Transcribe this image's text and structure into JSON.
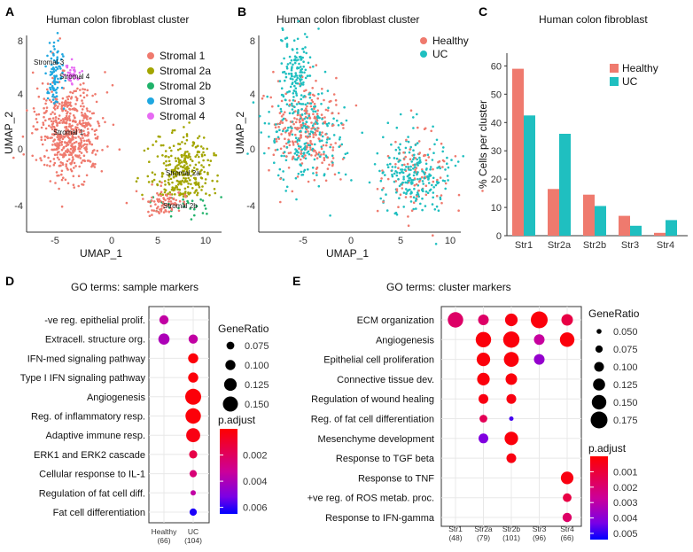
{
  "colors": {
    "salmon": "#ef7a6e",
    "teal": "#1fbfc0",
    "olive": "#a3a500",
    "green": "#20b26a",
    "blue": "#1fa7e0",
    "magenta": "#e76bf3"
  },
  "chart_data": [
    {
      "panel": "A",
      "type": "scatter",
      "title": "Human colon fibroblast cluster",
      "xlabel": "UMAP_1",
      "ylabel": "UMAP_2",
      "xticks": [
        "-5",
        "0",
        "5",
        "10"
      ],
      "yticks": [
        "-4",
        "0",
        "4",
        "8"
      ],
      "legend": [
        {
          "label": "Stromal 1",
          "color": "#ef7a6e"
        },
        {
          "label": "Stromal 2a",
          "color": "#a3a500"
        },
        {
          "label": "Stromal 2b",
          "color": "#20b26a"
        },
        {
          "label": "Stromal 3",
          "color": "#1fa7e0"
        },
        {
          "label": "Stromal 4",
          "color": "#e76bf3"
        }
      ],
      "cluster_labels": [
        "Stromal 3",
        "Stromal 4",
        "Stromal 1",
        "Stromal 2a",
        "Stromal 2b"
      ]
    },
    {
      "panel": "B",
      "type": "scatter",
      "title": "Human colon fibroblast cluster",
      "xlabel": "UMAP_1",
      "ylabel": "UMAP_2",
      "xticks": [
        "-5",
        "0",
        "5",
        "10"
      ],
      "yticks": [
        "-4",
        "0",
        "4",
        "8"
      ],
      "legend": [
        {
          "label": "Healthy",
          "color": "#ef7a6e"
        },
        {
          "label": "UC",
          "color": "#1fbfc0"
        }
      ]
    },
    {
      "panel": "C",
      "type": "bar",
      "title": "Human colon fibroblast",
      "ylabel": "% Cells per cluster",
      "categories": [
        "Str1",
        "Str2a",
        "Str2b",
        "Str3",
        "Str4"
      ],
      "yticks": [
        "0",
        "10",
        "20",
        "30",
        "40",
        "50",
        "60"
      ],
      "ylim": [
        0,
        62
      ],
      "series": [
        {
          "name": "Healthy",
          "color": "#ef7a6e",
          "values": [
            59,
            16.5,
            14.5,
            7,
            1
          ]
        },
        {
          "name": "UC",
          "color": "#1fbfc0",
          "values": [
            42.5,
            36,
            10.5,
            3.5,
            5.5
          ]
        }
      ]
    },
    {
      "panel": "D",
      "type": "scatter",
      "title": "GO terms: sample markers",
      "terms": [
        "-ve reg. epithelial prolif.",
        "Extracell. structure org.",
        "IFN-med signaling pathway",
        "Type I IFN signaling pathway",
        "Angiogenesis",
        "Reg. of inflammatory resp.",
        "Adaptive immune resp.",
        "ERK1 and ERK2 cascade",
        "Cellular response to IL-1",
        "Regulation of fat cell diff.",
        "Fat cell differentiation"
      ],
      "groups": [
        {
          "label": "Healthy",
          "n": "(66)"
        },
        {
          "label": "UC",
          "n": "(104)"
        }
      ],
      "points": [
        {
          "term": 0,
          "group": 0,
          "gene_ratio": 0.09,
          "p_adjust": 0.0035
        },
        {
          "term": 1,
          "group": 0,
          "gene_ratio": 0.11,
          "p_adjust": 0.004
        },
        {
          "term": 1,
          "group": 1,
          "gene_ratio": 0.09,
          "p_adjust": 0.0035
        },
        {
          "term": 2,
          "group": 1,
          "gene_ratio": 0.1,
          "p_adjust": 0.0002
        },
        {
          "term": 3,
          "group": 1,
          "gene_ratio": 0.1,
          "p_adjust": 0.0002
        },
        {
          "term": 4,
          "group": 1,
          "gene_ratio": 0.16,
          "p_adjust": 0.0002
        },
        {
          "term": 5,
          "group": 1,
          "gene_ratio": 0.155,
          "p_adjust": 0.0002
        },
        {
          "term": 6,
          "group": 1,
          "gene_ratio": 0.14,
          "p_adjust": 0.0004
        },
        {
          "term": 7,
          "group": 1,
          "gene_ratio": 0.08,
          "p_adjust": 0.0015
        },
        {
          "term": 8,
          "group": 1,
          "gene_ratio": 0.07,
          "p_adjust": 0.0025
        },
        {
          "term": 9,
          "group": 1,
          "gene_ratio": 0.05,
          "p_adjust": 0.0035
        },
        {
          "term": 10,
          "group": 1,
          "gene_ratio": 0.07,
          "p_adjust": 0.0062
        }
      ],
      "size_legend": {
        "title": "GeneRatio",
        "values": [
          0.075,
          0.1,
          0.125,
          0.15
        ],
        "labels": [
          "0.075",
          "0.100",
          "0.125",
          "0.150"
        ]
      },
      "color_legend": {
        "title": "p.adjust",
        "min": 0.0,
        "max": 0.0065,
        "ticks": [
          "0.002",
          "0.004",
          "0.006"
        ]
      }
    },
    {
      "panel": "E",
      "type": "scatter",
      "title": "GO terms: cluster markers",
      "terms": [
        "ECM organization",
        "Angiogenesis",
        "Epithelial cell proliferation",
        "Connective tissue dev.",
        "Regulation of wound healing",
        "Reg. of fat cell differentiation",
        "Mesenchyme development",
        "Response to TGF beta",
        "Response to TNF",
        "+ve reg. of ROS metab. proc.",
        "Response to IFN-gamma"
      ],
      "groups": [
        {
          "label": "Str1",
          "n": "(48)"
        },
        {
          "label": "Str2a",
          "n": "(79)"
        },
        {
          "label": "Str2b",
          "n": "(101)"
        },
        {
          "label": "Str3",
          "n": "(96)"
        },
        {
          "label": "Str4",
          "n": "(66)"
        }
      ],
      "points": [
        {
          "term": 0,
          "group": 0,
          "gene_ratio": 0.16,
          "p_adjust": 0.0018
        },
        {
          "term": 0,
          "group": 1,
          "gene_ratio": 0.11,
          "p_adjust": 0.0018
        },
        {
          "term": 0,
          "group": 2,
          "gene_ratio": 0.13,
          "p_adjust": 0.0003
        },
        {
          "term": 0,
          "group": 3,
          "gene_ratio": 0.175,
          "p_adjust": 0.0002
        },
        {
          "term": 0,
          "group": 4,
          "gene_ratio": 0.12,
          "p_adjust": 0.0012
        },
        {
          "term": 1,
          "group": 1,
          "gene_ratio": 0.16,
          "p_adjust": 0.0002
        },
        {
          "term": 1,
          "group": 2,
          "gene_ratio": 0.17,
          "p_adjust": 0.0002
        },
        {
          "term": 1,
          "group": 3,
          "gene_ratio": 0.11,
          "p_adjust": 0.0028
        },
        {
          "term": 1,
          "group": 4,
          "gene_ratio": 0.15,
          "p_adjust": 0.0002
        },
        {
          "term": 2,
          "group": 1,
          "gene_ratio": 0.14,
          "p_adjust": 0.0002
        },
        {
          "term": 2,
          "group": 2,
          "gene_ratio": 0.155,
          "p_adjust": 0.0002
        },
        {
          "term": 2,
          "group": 3,
          "gene_ratio": 0.11,
          "p_adjust": 0.0038
        },
        {
          "term": 3,
          "group": 1,
          "gene_ratio": 0.13,
          "p_adjust": 0.0002
        },
        {
          "term": 3,
          "group": 2,
          "gene_ratio": 0.12,
          "p_adjust": 0.0002
        },
        {
          "term": 4,
          "group": 1,
          "gene_ratio": 0.1,
          "p_adjust": 0.0003
        },
        {
          "term": 4,
          "group": 2,
          "gene_ratio": 0.1,
          "p_adjust": 0.0003
        },
        {
          "term": 5,
          "group": 1,
          "gene_ratio": 0.08,
          "p_adjust": 0.0015
        },
        {
          "term": 5,
          "group": 2,
          "gene_ratio": 0.045,
          "p_adjust": 0.0048
        },
        {
          "term": 6,
          "group": 1,
          "gene_ratio": 0.1,
          "p_adjust": 0.0042
        },
        {
          "term": 6,
          "group": 2,
          "gene_ratio": 0.14,
          "p_adjust": 0.0002
        },
        {
          "term": 7,
          "group": 2,
          "gene_ratio": 0.1,
          "p_adjust": 0.0003
        },
        {
          "term": 8,
          "group": 4,
          "gene_ratio": 0.13,
          "p_adjust": 0.0003
        },
        {
          "term": 9,
          "group": 4,
          "gene_ratio": 0.09,
          "p_adjust": 0.0012
        },
        {
          "term": 10,
          "group": 4,
          "gene_ratio": 0.095,
          "p_adjust": 0.0018
        }
      ],
      "size_legend": {
        "title": "GeneRatio",
        "values": [
          0.05,
          0.075,
          0.1,
          0.125,
          0.15,
          0.175
        ],
        "labels": [
          "0.050",
          "0.075",
          "0.100",
          "0.125",
          "0.150",
          "0.175"
        ]
      },
      "color_legend": {
        "title": "p.adjust",
        "min": 0.0,
        "max": 0.0054,
        "ticks": [
          "0.001",
          "0.002",
          "0.003",
          "0.004",
          "0.005"
        ]
      }
    }
  ],
  "panel_labels": [
    "A",
    "B",
    "C",
    "D",
    "E"
  ]
}
